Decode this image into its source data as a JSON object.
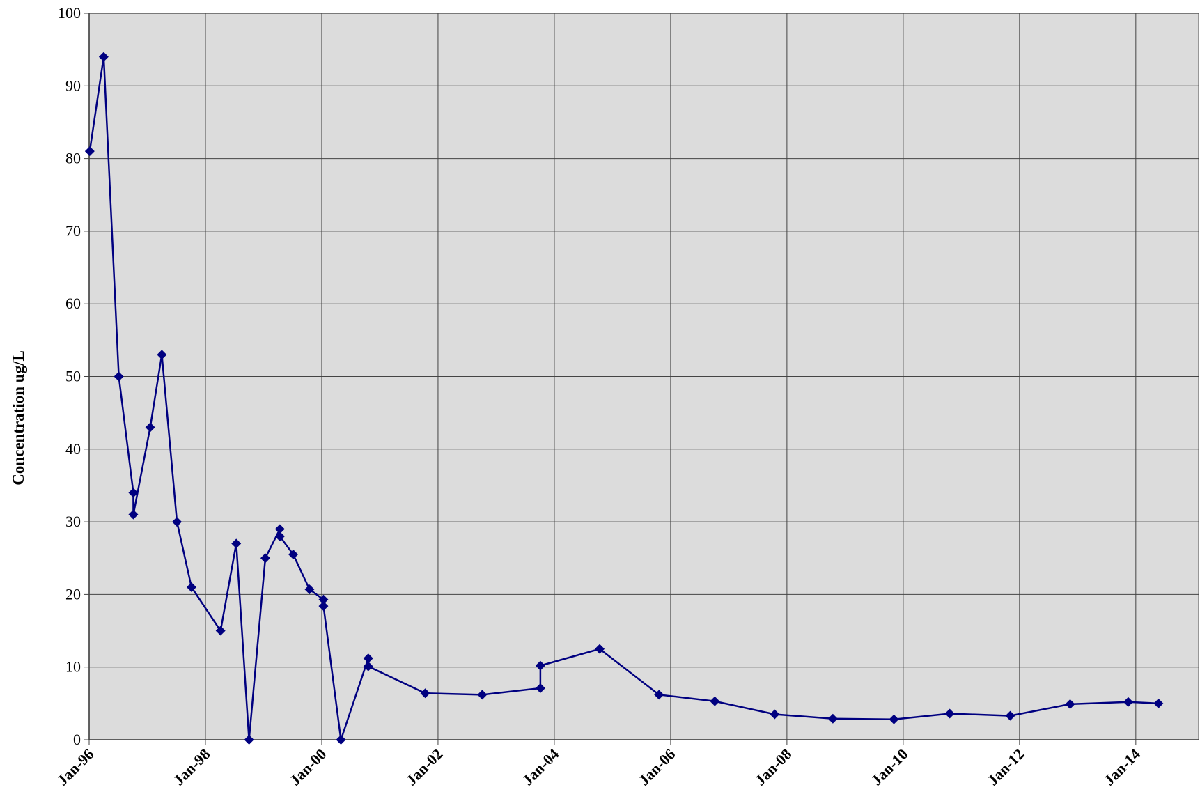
{
  "chart_data": {
    "type": "line",
    "ylabel": "Concentration  ug/L",
    "x": [
      1996.01,
      1996.25,
      1996.51,
      1996.76,
      1996.76,
      1997.05,
      1997.25,
      1997.51,
      1997.76,
      1998.26,
      1998.53,
      1998.75,
      1999.03,
      1999.28,
      1999.28,
      1999.51,
      1999.79,
      2000.03,
      2000.03,
      2000.33,
      2000.8,
      2000.8,
      2001.78,
      2002.76,
      2003.76,
      2003.76,
      2004.78,
      2005.8,
      2006.76,
      2007.79,
      2008.79,
      2009.84,
      2010.8,
      2011.84,
      2012.87,
      2013.87,
      2014.39
    ],
    "series": [
      {
        "color": "#000080",
        "values": [
          81,
          94,
          50,
          34,
          31,
          43,
          53,
          30,
          21,
          15,
          27,
          0,
          25,
          29,
          28,
          25.5,
          20.7,
          19.3,
          18.4,
          0,
          11.2,
          10.1,
          6.4,
          6.2,
          7.1,
          10.2,
          12.5,
          6.2,
          5.3,
          3.5,
          2.9,
          2.8,
          3.6,
          3.3,
          4.9,
          5.2,
          5.0
        ]
      }
    ],
    "xlim": [
      1996,
      2015.08
    ],
    "xticks": [
      {
        "value": 1996,
        "label": "Jan-96"
      },
      {
        "value": 1998,
        "label": "Jan-98"
      },
      {
        "value": 2000,
        "label": "Jan-00"
      },
      {
        "value": 2002,
        "label": "Jan-02"
      },
      {
        "value": 2004,
        "label": "Jan-04"
      },
      {
        "value": 2006,
        "label": "Jan-06"
      },
      {
        "value": 2008,
        "label": "Jan-08"
      },
      {
        "value": 2010,
        "label": "Jan-10"
      },
      {
        "value": 2012,
        "label": "Jan-12"
      },
      {
        "value": 2014,
        "label": "Jan-14"
      }
    ],
    "ylim": [
      0,
      100
    ],
    "yticks": [
      0,
      10,
      20,
      30,
      40,
      50,
      60,
      70,
      80,
      90,
      100
    ],
    "grid": true,
    "background": "#dcdcdc"
  }
}
